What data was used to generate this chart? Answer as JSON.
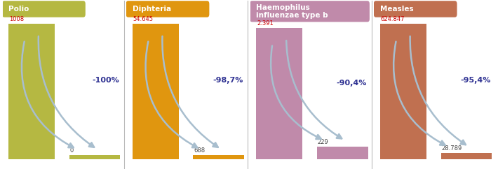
{
  "panels": [
    {
      "title": "Polio",
      "title_color": "#ffffff",
      "title_bg": "#b5b842",
      "bar_color": "#b5b842",
      "value1": 1008,
      "value2": 0,
      "label1": "1008",
      "label2": "0",
      "pct": "-100%",
      "pct_color": "#2e3192"
    },
    {
      "title": "Diphteria",
      "title_color": "#ffffff",
      "title_bg": "#e0960f",
      "bar_color": "#e0960f",
      "value1": 54645,
      "value2": 688,
      "label1": "54.645",
      "label2": "688",
      "pct": "-98,7%",
      "pct_color": "#2e3192"
    },
    {
      "title": "Haemophilus\ninfluenzae type b",
      "title_color": "#ffffff",
      "title_bg": "#c08aaa",
      "bar_color": "#c08aaa",
      "value1": 2391,
      "value2": 229,
      "label1": "2.391",
      "label2": "229",
      "pct": "-90,4%",
      "pct_color": "#2e3192"
    },
    {
      "title": "Measles",
      "title_color": "#ffffff",
      "title_bg": "#c07050",
      "bar_color": "#c07050",
      "value1": 624847,
      "value2": 28789,
      "label1": "624.847",
      "label2": "28.789",
      "pct": "-95,4%",
      "pct_color": "#2e3192"
    }
  ],
  "arrow_color": "#a8bece",
  "background_color": "#ffffff",
  "border_color": "#bbbbbb",
  "label_color_top": "#cc0000",
  "label_color_bottom": "#444444"
}
